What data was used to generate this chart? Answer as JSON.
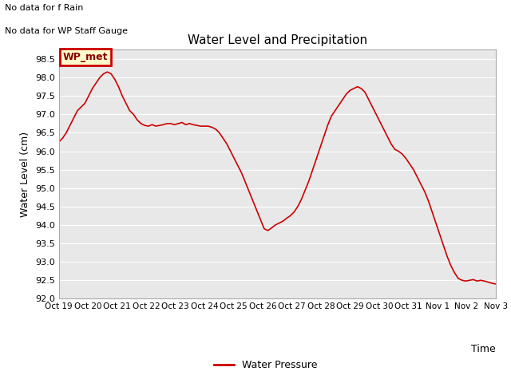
{
  "title": "Water Level and Precipitation",
  "xlabel": "Time",
  "ylabel": "Water Level (cm)",
  "ylim": [
    92.0,
    98.75
  ],
  "bg_color": "#e8e8e8",
  "line_color": "#cc0000",
  "annotation1": "No data for f Rain",
  "annotation2": "No data for WP Staff Gauge",
  "legend_label": "WP_met",
  "bottom_legend_label": "Water Pressure",
  "x_tick_labels": [
    "Oct 19",
    "Oct 20",
    "Oct 21",
    "Oct 22",
    "Oct 23",
    "Oct 24",
    "Oct 25",
    "Oct 26",
    "Oct 27",
    "Oct 28",
    "Oct 29",
    "Oct 30",
    "Oct 31",
    "Nov 1",
    "Nov 2",
    "Nov 3"
  ],
  "yticks": [
    92.0,
    92.5,
    93.0,
    93.5,
    94.0,
    94.5,
    95.0,
    95.5,
    96.0,
    96.5,
    97.0,
    97.5,
    98.0,
    98.5
  ],
  "water_level": [
    96.25,
    96.35,
    96.5,
    96.7,
    96.9,
    97.1,
    97.2,
    97.3,
    97.5,
    97.7,
    97.85,
    98.0,
    98.1,
    98.15,
    98.1,
    97.95,
    97.75,
    97.5,
    97.3,
    97.1,
    97.0,
    96.85,
    96.75,
    96.7,
    96.68,
    96.72,
    96.68,
    96.7,
    96.72,
    96.75,
    96.75,
    96.72,
    96.75,
    96.78,
    96.72,
    96.75,
    96.72,
    96.7,
    96.68,
    96.68,
    96.68,
    96.65,
    96.6,
    96.5,
    96.35,
    96.2,
    96.0,
    95.8,
    95.6,
    95.4,
    95.15,
    94.9,
    94.65,
    94.4,
    94.15,
    93.9,
    93.85,
    93.92,
    94.0,
    94.05,
    94.1,
    94.18,
    94.25,
    94.35,
    94.5,
    94.7,
    94.95,
    95.2,
    95.5,
    95.8,
    96.1,
    96.4,
    96.7,
    96.95,
    97.1,
    97.25,
    97.4,
    97.55,
    97.65,
    97.7,
    97.75,
    97.7,
    97.6,
    97.4,
    97.2,
    97.0,
    96.8,
    96.6,
    96.4,
    96.2,
    96.05,
    96.0,
    95.92,
    95.8,
    95.65,
    95.5,
    95.3,
    95.1,
    94.9,
    94.65,
    94.35,
    94.05,
    93.75,
    93.45,
    93.15,
    92.9,
    92.7,
    92.55,
    92.5,
    92.48,
    92.5,
    92.52,
    92.48,
    92.5,
    92.48,
    92.45,
    92.42,
    92.4
  ]
}
